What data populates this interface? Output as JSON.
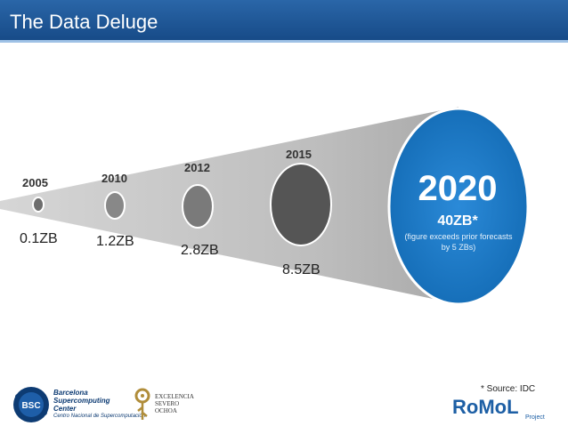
{
  "header": {
    "title": "The Data Deluge"
  },
  "timeline": [
    {
      "year": "2005",
      "value": "0.1ZB"
    },
    {
      "year": "2010",
      "value": "1.2ZB"
    },
    {
      "year": "2012",
      "value": "2.8ZB"
    },
    {
      "year": "2015",
      "value": "8.5ZB"
    }
  ],
  "highlight": {
    "year": "2020",
    "value": "40ZB*",
    "note_line1": "(figure exceeds prior forecasts",
    "note_line2": "by 5 ZBs)"
  },
  "source": "* Source: IDC",
  "logos": {
    "bsc_line1": "Barcelona",
    "bsc_line2": "Supercomputing",
    "bsc_line3": "Center",
    "bsc_sub": "Centro Nacional de Supercomputación",
    "bsc_mark": "BSC",
    "severo_line1": "EXCELENCIA",
    "severo_line2": "SEVERO",
    "severo_line3": "OCHOA",
    "romol": "RoMoL",
    "romol_sub": "Project"
  },
  "colors": {
    "header": "#1f5c9e",
    "circle_2020": "#1e7bc8",
    "funnel": "#c9c9c9",
    "bsc_blue": "#0d3b73"
  }
}
